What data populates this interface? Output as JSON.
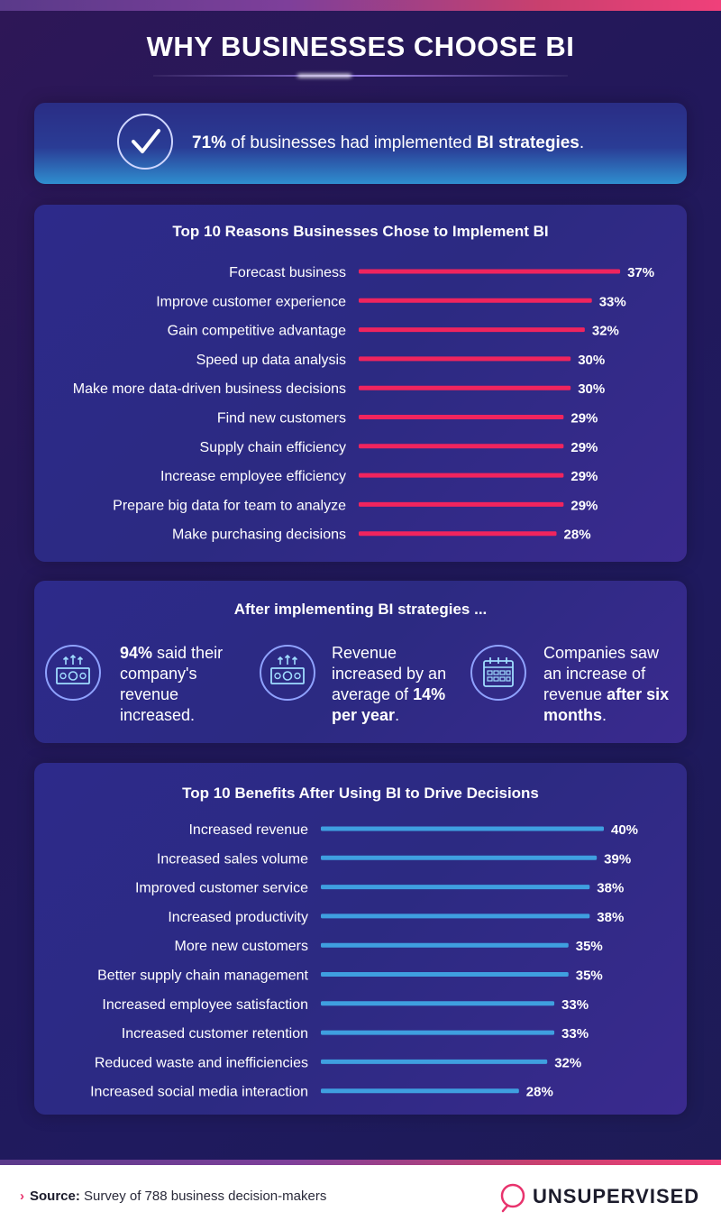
{
  "title": "WHY BUSINESSES CHOOSE BI",
  "stat": {
    "highlight_1": "71%",
    "text_1": " of businesses had implemented ",
    "highlight_2": "BI strategies",
    "text_2": "."
  },
  "after": {
    "title": "After implementing BI strategies ...",
    "items": [
      {
        "icon": "money-up-icon",
        "bold": "94%",
        "text": " said their company's revenue increased."
      },
      {
        "icon": "money-up-icon",
        "text": "Revenue increased by an average of ",
        "bold": "14% per year",
        "tail": "."
      },
      {
        "icon": "calendar-icon",
        "text": "Companies saw an increase of revenue ",
        "bold": "after six months",
        "tail": "."
      }
    ]
  },
  "footer": {
    "source_label": "Source:",
    "source_text": " Survey of 788 business decision-makers",
    "brand": "UNSUPERVISED"
  },
  "colors": {
    "reasons_bar": "#f0245e",
    "benefits_bar": "#3f9fe0"
  },
  "chart_data": [
    {
      "type": "bar",
      "orientation": "horizontal",
      "title": "Top 10 Reasons Businesses Chose to Implement BI",
      "categories": [
        "Forecast business",
        "Improve customer experience",
        "Gain competitive advantage",
        "Speed up data analysis",
        "Make more data-driven business decisions",
        "Find new customers",
        "Supply chain efficiency",
        "Increase employee efficiency",
        "Prepare big data for team to analyze",
        "Make purchasing decisions"
      ],
      "values": [
        37,
        33,
        32,
        30,
        30,
        29,
        29,
        29,
        29,
        28
      ],
      "value_labels": [
        "37%",
        "33%",
        "32%",
        "30%",
        "30%",
        "29%",
        "29%",
        "29%",
        "29%",
        "28%"
      ],
      "unit": "%"
    },
    {
      "type": "bar",
      "orientation": "horizontal",
      "title": "Top 10 Benefits After Using BI to Drive Decisions",
      "categories": [
        "Increased revenue",
        "Increased sales volume",
        "Improved customer service",
        "Increased productivity",
        "More new customers",
        "Better supply chain management",
        "Increased employee satisfaction",
        "Increased customer retention",
        "Reduced waste and inefficiencies",
        "Increased social media interaction"
      ],
      "values": [
        40,
        39,
        38,
        38,
        35,
        35,
        33,
        33,
        32,
        28
      ],
      "value_labels": [
        "40%",
        "39%",
        "38%",
        "38%",
        "35%",
        "35%",
        "33%",
        "33%",
        "32%",
        "28%"
      ],
      "unit": "%"
    }
  ]
}
